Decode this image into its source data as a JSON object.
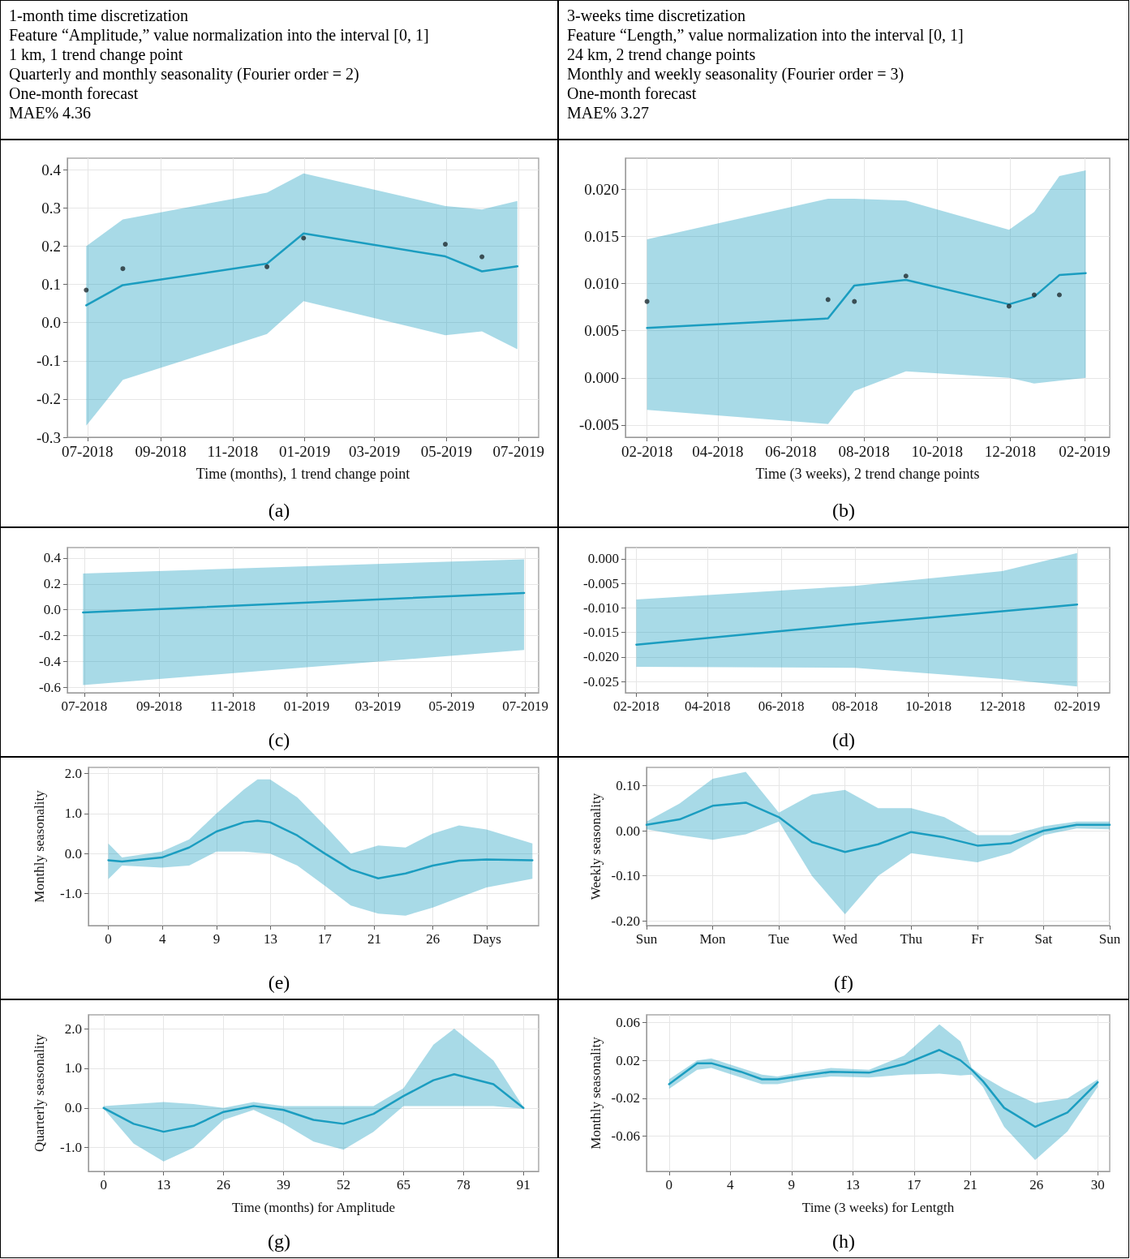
{
  "chart_data": [
    {
      "type": "other",
      "annotations": [
        "1-month time discretization",
        "Feature “Amplitude,” value normalization into the interval [0, 1]",
        "1 km, 1 trend change point",
        "Quarterly and monthly seasonality (Fourier order = 2)",
        "One-month forecast",
        "MAE% 4.36"
      ]
    },
    {
      "type": "other",
      "annotations": [
        "3-weeks time discretization",
        "Feature “Length,” value normalization into the interval [0, 1]",
        "24 km, 2 trend change points",
        "Monthly and weekly seasonality (Fourier order = 3)",
        "One-month forecast",
        "MAE% 3.27"
      ]
    },
    {
      "type": "line",
      "xlabel": "Time (months), 1 trend change point",
      "annotations": [
        "(a)"
      ],
      "grid": true,
      "x": [
        "2018-06-30",
        "2018-07-31",
        "2018-11-30",
        "2018-12-31",
        "2019-04-30",
        "2019-05-31",
        "2019-06-30"
      ],
      "xlim": [
        "2018-06-14",
        "2019-07-18"
      ],
      "xticks": [
        {
          "value": "2018-07-01",
          "label": "07-2018"
        },
        {
          "value": "2018-09-01",
          "label": "09-2018"
        },
        {
          "value": "2018-11-01",
          "label": "11-2018"
        },
        {
          "value": "2019-01-01",
          "label": "01-2019"
        },
        {
          "value": "2019-03-01",
          "label": "03-2019"
        },
        {
          "value": "2019-05-01",
          "label": "05-2019"
        },
        {
          "value": "2019-07-01",
          "label": "07-2019"
        }
      ],
      "ylim": [
        -0.3,
        0.43
      ],
      "yticks": [
        -0.3,
        -0.2,
        -0.1,
        {
          "value": 0,
          "label": "0.0"
        },
        0.1,
        0.2,
        0.3,
        0.4
      ],
      "series": [
        {
          "color": "#1b9dc0",
          "values": [
            0.045,
            0.098,
            0.154,
            0.233,
            0.173,
            0.134,
            0.147
          ],
          "lower": [
            -0.27,
            -0.15,
            -0.03,
            0.056,
            -0.033,
            -0.023,
            -0.07
          ],
          "upper": [
            0.2,
            0.27,
            0.34,
            0.39,
            0.305,
            0.296,
            0.318
          ]
        },
        {
          "type": "scatter",
          "marker": "circle",
          "color": "#1e2a30",
          "x": [
            "2018-06-30",
            "2018-07-31",
            "2018-11-30",
            "2018-12-31",
            "2019-04-30",
            "2019-05-31"
          ],
          "values": [
            0.085,
            0.141,
            0.146,
            0.221,
            0.205,
            0.172
          ]
        }
      ]
    },
    {
      "type": "line",
      "xlabel": "Time (3 weeks), 2 trend change points",
      "annotations": [
        "(b)"
      ],
      "grid": true,
      "x": [
        "2018-02-01",
        "2018-07-02",
        "2018-07-24",
        "2018-09-05",
        "2018-11-30",
        "2018-12-21",
        "2019-01-11",
        "2019-02-02"
      ],
      "xlim": [
        "2018-01-14",
        "2019-02-22"
      ],
      "xticks": [
        {
          "value": "2018-02-01",
          "label": "02-2018"
        },
        {
          "value": "2018-04-01",
          "label": "04-2018"
        },
        {
          "value": "2018-06-01",
          "label": "06-2018"
        },
        {
          "value": "2018-08-01",
          "label": "08-2018"
        },
        {
          "value": "2018-10-01",
          "label": "10-2018"
        },
        {
          "value": "2018-12-01",
          "label": "12-2018"
        },
        {
          "value": "2019-02-01",
          "label": "02-2019"
        }
      ],
      "ylim": [
        -0.0063,
        0.0233
      ],
      "yticks": [
        -0.005,
        {
          "value": 0,
          "label": "0.000"
        },
        0.005,
        {
          "value": 0.01,
          "label": "0.010"
        },
        0.015,
        {
          "value": 0.02,
          "label": "0.020"
        }
      ],
      "series": [
        {
          "color": "#1b9dc0",
          "values": [
            0.0053,
            0.0063,
            0.0098,
            0.0104,
            0.0078,
            0.0086,
            0.0109,
            0.0111
          ],
          "lower": [
            -0.0034,
            -0.0049,
            -0.0014,
            0.0007,
            0.0,
            -0.0006,
            -0.0003,
            0.0
          ],
          "upper": [
            0.0147,
            0.019,
            0.019,
            0.0188,
            0.0157,
            0.0176,
            0.0214,
            0.022
          ]
        },
        {
          "type": "scatter",
          "marker": "circle",
          "color": "#1e2a30",
          "x": [
            "2018-02-01",
            "2018-07-02",
            "2018-07-24",
            "2018-09-05",
            "2018-11-30",
            "2018-12-21",
            "2019-01-11"
          ],
          "values": [
            0.0081,
            0.0083,
            0.0081,
            0.0108,
            0.0076,
            0.0088,
            0.0088
          ]
        }
      ]
    },
    {
      "type": "line",
      "annotations": [
        "(c)"
      ],
      "grid": true,
      "x": [
        "2018-06-30",
        "2019-06-30"
      ],
      "xlim": [
        "2018-06-17",
        "2019-07-12"
      ],
      "xticks": [
        {
          "value": "2018-07-01",
          "label": "07-2018"
        },
        {
          "value": "2018-09-01",
          "label": "09-2018"
        },
        {
          "value": "2018-11-01",
          "label": "11-2018"
        },
        {
          "value": "2019-01-01",
          "label": "01-2019"
        },
        {
          "value": "2019-03-01",
          "label": "03-2019"
        },
        {
          "value": "2019-05-01",
          "label": "05-2019"
        },
        {
          "value": "2019-07-01",
          "label": "07-2019"
        }
      ],
      "ylim": [
        -0.64,
        0.48
      ],
      "yticks": [
        -0.6,
        -0.4,
        -0.2,
        {
          "value": 0,
          "label": "0.0"
        },
        0.2,
        0.4
      ],
      "series": [
        {
          "color": "#1b9dc0",
          "values": [
            -0.02,
            0.13
          ],
          "lower": [
            -0.58,
            -0.31
          ],
          "upper": [
            0.28,
            0.39
          ]
        }
      ]
    },
    {
      "type": "line",
      "annotations": [
        "(d)"
      ],
      "grid": true,
      "x": [
        "2018-02-01",
        "2018-08-01",
        "2018-12-01",
        "2019-02-01"
      ],
      "xlim": [
        "2018-01-23",
        "2019-02-28"
      ],
      "xticks": [
        {
          "value": "2018-02-01",
          "label": "02-2018"
        },
        {
          "value": "2018-04-01",
          "label": "04-2018"
        },
        {
          "value": "2018-06-01",
          "label": "06-2018"
        },
        {
          "value": "2018-08-01",
          "label": "08-2018"
        },
        {
          "value": "2018-10-01",
          "label": "10-2018"
        },
        {
          "value": "2018-12-01",
          "label": "12-2018"
        },
        {
          "value": "2019-02-01",
          "label": "02-2019"
        }
      ],
      "ylim": [
        -0.0273,
        0.0023
      ],
      "yticks": [
        -0.025,
        {
          "value": -0.02,
          "label": "-0.020"
        },
        -0.015,
        {
          "value": -0.01,
          "label": "-0.010"
        },
        -0.005,
        {
          "value": 0,
          "label": "0.000"
        }
      ],
      "series": [
        {
          "color": "#1b9dc0",
          "values": [
            -0.0175,
            -0.0133,
            -0.0107,
            -0.0093
          ],
          "lower": [
            -0.022,
            -0.0222,
            -0.0245,
            -0.026
          ],
          "upper": [
            -0.0083,
            -0.0055,
            -0.0025,
            0.0012
          ]
        }
      ]
    },
    {
      "type": "line",
      "ylabel": "Monthly seasonality",
      "annotations": [
        "(e)"
      ],
      "grid": true,
      "x": [
        0,
        1.1,
        4.3,
        6.5,
        8.7,
        10.9,
        12.0,
        13.0,
        15.2,
        17.4,
        19.5,
        21.7,
        23.9,
        26.1,
        28.2,
        30.4,
        34.1
      ],
      "xlim": [
        -1.6,
        34.6
      ],
      "xticks": [
        0,
        {
          "value": 4.35,
          "label": "4"
        },
        {
          "value": 8.7,
          "label": "9"
        },
        {
          "value": 13.05,
          "label": "13"
        },
        {
          "value": 17.4,
          "label": "17"
        },
        {
          "value": 21.4,
          "label": "21"
        },
        {
          "value": 26.1,
          "label": "26"
        },
        {
          "value": 30.45,
          "label": "Days"
        }
      ],
      "ylim": [
        -1.8,
        2.15
      ],
      "yticks": [
        {
          "value": -1,
          "label": "-1.0"
        },
        {
          "value": 0,
          "label": "0.0"
        },
        {
          "value": 1,
          "label": "1.0"
        },
        {
          "value": 2,
          "label": "2.0"
        }
      ],
      "series": [
        {
          "color": "#1b9dc0",
          "values": [
            -0.17,
            -0.2,
            -0.1,
            0.15,
            0.55,
            0.78,
            0.82,
            0.78,
            0.45,
            0.0,
            -0.4,
            -0.62,
            -0.5,
            -0.3,
            -0.18,
            -0.15,
            -0.17
          ],
          "lower": [
            -0.64,
            -0.3,
            -0.35,
            -0.3,
            0.05,
            0.05,
            0.02,
            0.0,
            -0.3,
            -0.8,
            -1.3,
            -1.5,
            -1.55,
            -1.35,
            -1.1,
            -0.85,
            -0.63
          ],
          "upper": [
            0.25,
            -0.1,
            0.05,
            0.35,
            1.0,
            1.6,
            1.85,
            1.85,
            1.4,
            0.7,
            0.0,
            0.2,
            0.15,
            0.5,
            0.7,
            0.6,
            0.25
          ]
        }
      ]
    },
    {
      "type": "line",
      "ylabel": "Weekly seasonality",
      "annotations": [
        "(f)"
      ],
      "grid": true,
      "categories": [
        "Sun",
        null,
        "Mon",
        null,
        "Tue",
        null,
        "Wed",
        null,
        "Thu",
        null,
        "Fr",
        null,
        "Sat",
        null,
        "Sun"
      ],
      "ylim": [
        -0.21,
        0.14
      ],
      "yticks": [
        {
          "value": -0.2,
          "label": "-0.20"
        },
        {
          "value": -0.1,
          "label": "-0.10"
        },
        {
          "value": 0,
          "label": "0.00"
        },
        {
          "value": 0.1,
          "label": "0.10"
        }
      ],
      "series": [
        {
          "color": "#1b9dc0",
          "values": [
            0.013,
            0.025,
            0.055,
            0.062,
            0.03,
            -0.025,
            -0.047,
            -0.03,
            -0.003,
            -0.015,
            -0.033,
            -0.028,
            0.0,
            0.013,
            0.013
          ],
          "lower": [
            0.003,
            -0.01,
            -0.02,
            -0.008,
            0.02,
            -0.1,
            -0.185,
            -0.1,
            -0.05,
            -0.06,
            -0.07,
            -0.05,
            -0.01,
            0.005,
            0.003
          ],
          "upper": [
            0.02,
            0.06,
            0.115,
            0.13,
            0.04,
            0.08,
            0.09,
            0.05,
            0.05,
            0.03,
            -0.01,
            -0.01,
            0.01,
            0.02,
            0.02
          ]
        }
      ]
    },
    {
      "type": "line",
      "xlabel": "Time (months) for Amplitude",
      "ylabel": "Quarterly seasonality",
      "annotations": [
        "(g)"
      ],
      "grid": true,
      "x": [
        0,
        6.5,
        13,
        19.5,
        26,
        32.5,
        39,
        45.5,
        52,
        58.5,
        65,
        71.5,
        76,
        84.5,
        91
      ],
      "xlim": [
        -3.3,
        94.3
      ],
      "xticks": [
        0,
        13,
        26,
        39,
        52,
        65,
        78,
        91
      ],
      "ylim": [
        -1.6,
        2.35
      ],
      "yticks": [
        {
          "value": -1,
          "label": "-1.0"
        },
        {
          "value": 0,
          "label": "0.0"
        },
        {
          "value": 1,
          "label": "1.0"
        },
        {
          "value": 2,
          "label": "2.0"
        }
      ],
      "series": [
        {
          "color": "#1b9dc0",
          "values": [
            0.0,
            -0.4,
            -0.6,
            -0.45,
            -0.1,
            0.05,
            -0.05,
            -0.3,
            -0.4,
            -0.15,
            0.3,
            0.7,
            0.85,
            0.6,
            0.0
          ],
          "lower": [
            -0.02,
            -0.9,
            -1.35,
            -1.0,
            -0.3,
            -0.05,
            -0.4,
            -0.85,
            -1.05,
            -0.6,
            0.05,
            0.05,
            0.05,
            0.05,
            -0.02
          ],
          "upper": [
            0.05,
            0.1,
            0.15,
            0.1,
            0.0,
            0.15,
            0.05,
            0.05,
            0.05,
            0.05,
            0.5,
            1.6,
            2.0,
            1.2,
            0.02
          ]
        }
      ]
    },
    {
      "type": "line",
      "xlabel": "Time (3 weeks) for Lentgth",
      "ylabel": "Monthly seasonality",
      "annotations": [
        "(h)"
      ],
      "grid": true,
      "x": [
        0,
        2.0,
        3.0,
        5.1,
        6.6,
        7.7,
        9.6,
        11.5,
        14.2,
        16.7,
        19.2,
        20.7,
        21.5,
        22.3,
        23.8,
        26.0,
        28.3,
        30.45
      ],
      "xlim": [
        -1.6,
        31.3
      ],
      "xticks": [
        0,
        {
          "value": 4.35,
          "label": "4"
        },
        {
          "value": 8.7,
          "label": "9"
        },
        {
          "value": 13.05,
          "label": "13"
        },
        {
          "value": 17.4,
          "label": "17"
        },
        {
          "value": 21.4,
          "label": "21"
        },
        {
          "value": 26.1,
          "label": "26"
        },
        {
          "value": 30.45,
          "label": "30"
        }
      ],
      "ylim": [
        -0.097,
        0.068
      ],
      "yticks": [
        -0.06,
        -0.02,
        0.02,
        0.06
      ],
      "series": [
        {
          "color": "#1b9dc0",
          "values": [
            -0.005,
            0.017,
            0.017,
            0.008,
            0.0,
            0.0,
            0.004,
            0.008,
            0.007,
            0.016,
            0.031,
            0.02,
            0.01,
            -0.002,
            -0.03,
            -0.05,
            -0.035,
            -0.003
          ],
          "lower": [
            -0.01,
            0.01,
            0.012,
            0.002,
            -0.005,
            -0.005,
            0.0,
            0.003,
            0.002,
            0.005,
            0.006,
            0.004,
            0.005,
            -0.008,
            -0.05,
            -0.085,
            -0.055,
            -0.008
          ],
          "upper": [
            0.0,
            0.02,
            0.022,
            0.012,
            0.005,
            0.003,
            0.008,
            0.012,
            0.01,
            0.025,
            0.058,
            0.04,
            0.012,
            0.003,
            -0.01,
            -0.025,
            -0.02,
            0.0
          ]
        }
      ]
    }
  ]
}
